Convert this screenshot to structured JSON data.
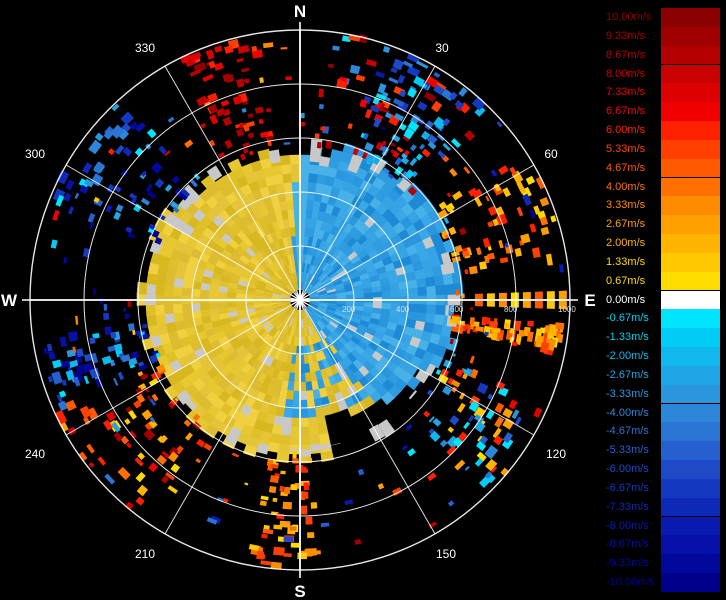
{
  "chart_data": {
    "type": "heatmap",
    "projection": "polar",
    "title": "",
    "compass_labels": {
      "north": "N",
      "east": "E",
      "south": "S",
      "west": "W"
    },
    "azimuth_labels": [
      "30",
      "60",
      "120",
      "150",
      "210",
      "240",
      "300",
      "330"
    ],
    "range_labels": [
      "200",
      "400",
      "600",
      "800",
      "1000"
    ],
    "range_max": 1000,
    "grid": true,
    "legend_position": "right",
    "colorbar": [
      {
        "label": "10.00m/s",
        "value": 10.0,
        "color": "#8b0000"
      },
      {
        "label": "9.33m/s",
        "value": 9.33,
        "color": "#a00000"
      },
      {
        "label": "8.67m/s",
        "value": 8.67,
        "color": "#b40000"
      },
      {
        "label": "8.00m/s",
        "value": 8.0,
        "color": "#c80000"
      },
      {
        "label": "7.33m/s",
        "value": 7.33,
        "color": "#dc0000"
      },
      {
        "label": "6.67m/s",
        "value": 6.67,
        "color": "#f00000"
      },
      {
        "label": "6.00m/s",
        "value": 6.0,
        "color": "#ff2000"
      },
      {
        "label": "5.33m/s",
        "value": 5.33,
        "color": "#ff4000"
      },
      {
        "label": "4.67m/s",
        "value": 4.67,
        "color": "#ff5a00"
      },
      {
        "label": "4.00m/s",
        "value": 4.0,
        "color": "#ff7000"
      },
      {
        "label": "3.33m/s",
        "value": 3.33,
        "color": "#ff8c00"
      },
      {
        "label": "2.67m/s",
        "value": 2.67,
        "color": "#ffa000"
      },
      {
        "label": "2.00m/s",
        "value": 2.0,
        "color": "#ffb400"
      },
      {
        "label": "1.33m/s",
        "value": 1.33,
        "color": "#ffc800"
      },
      {
        "label": "0.67m/s",
        "value": 0.67,
        "color": "#ffdc00"
      },
      {
        "label": "0.00m/s",
        "value": 0.0,
        "color": "#ffffff"
      },
      {
        "label": "-0.67m/s",
        "value": -0.67,
        "color": "#00e5ff"
      },
      {
        "label": "-1.33m/s",
        "value": -1.33,
        "color": "#00ccf5"
      },
      {
        "label": "-2.00m/s",
        "value": -2.0,
        "color": "#10b8ee"
      },
      {
        "label": "-2.67m/s",
        "value": -2.67,
        "color": "#1ea6e6"
      },
      {
        "label": "-3.33m/s",
        "value": -3.33,
        "color": "#2a96de"
      },
      {
        "label": "-4.00m/s",
        "value": -4.0,
        "color": "#2d86d8"
      },
      {
        "label": "-4.67m/s",
        "value": -4.67,
        "color": "#2a74d4"
      },
      {
        "label": "-5.33m/s",
        "value": -5.33,
        "color": "#2660ce"
      },
      {
        "label": "-6.00m/s",
        "value": -6.0,
        "color": "#1e4ac8"
      },
      {
        "label": "-6.67m/s",
        "value": -6.67,
        "color": "#1538c0"
      },
      {
        "label": "-7.33m/s",
        "value": -7.33,
        "color": "#0e28b8"
      },
      {
        "label": "-8.00m/s",
        "value": -8.0,
        "color": "#081ab0"
      },
      {
        "label": "-8.67m/s",
        "value": -8.67,
        "color": "#0410a6"
      },
      {
        "label": "-9.33m/s",
        "value": -9.33,
        "color": "#02089a"
      },
      {
        "label": "-10.00m/s",
        "value": -10.0,
        "color": "#00008a"
      }
    ],
    "colors": {
      "approaching": "#2a96de",
      "receding": "#e8c830",
      "clutter": "#c8c8c8",
      "grid": "#ffffff",
      "north_south_line": "#ffffff",
      "east_west_line": "#ffffff"
    }
  }
}
